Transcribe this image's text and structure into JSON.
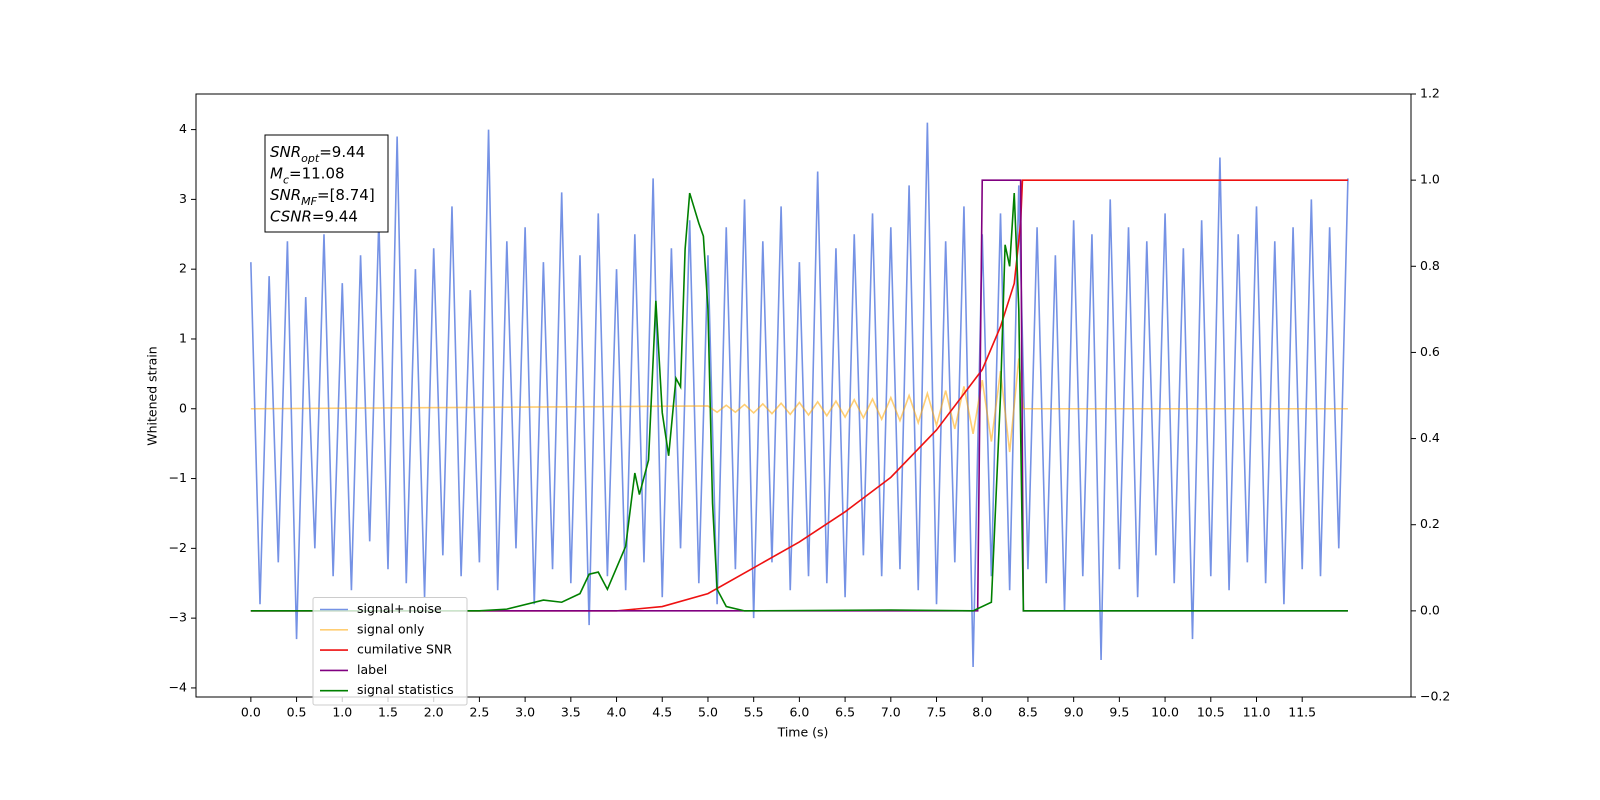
{
  "chart_data": {
    "type": "line",
    "xlabel": "Time (s)",
    "ylabel": "Whitened strain",
    "xlim": [
      -0.6,
      12.69
    ],
    "ylim": [
      -4.13,
      4.51
    ],
    "y2lim": [
      -0.2,
      1.2
    ],
    "xticks": [
      {
        "value": 0,
        "label": "0.0"
      },
      {
        "value": 0.5,
        "label": "0.5"
      },
      {
        "value": 1,
        "label": "1.0"
      },
      {
        "value": 1.5,
        "label": "1.5"
      },
      {
        "value": 2,
        "label": "2.0"
      },
      {
        "value": 2.5,
        "label": "2.5"
      },
      {
        "value": 3,
        "label": "3.0"
      },
      {
        "value": 3.5,
        "label": "3.5"
      },
      {
        "value": 4,
        "label": "4.0"
      },
      {
        "value": 4.5,
        "label": "4.5"
      },
      {
        "value": 5,
        "label": "5.0"
      },
      {
        "value": 5.5,
        "label": "5.5"
      },
      {
        "value": 6,
        "label": "6.0"
      },
      {
        "value": 6.5,
        "label": "6.5"
      },
      {
        "value": 7,
        "label": "7.0"
      },
      {
        "value": 7.5,
        "label": "7.5"
      },
      {
        "value": 8,
        "label": "8.0"
      },
      {
        "value": 8.5,
        "label": "8.5"
      },
      {
        "value": 9,
        "label": "9.0"
      },
      {
        "value": 9.5,
        "label": "9.5"
      },
      {
        "value": 10,
        "label": "10.0"
      },
      {
        "value": 10.5,
        "label": "10.5"
      },
      {
        "value": 11,
        "label": "11.0"
      },
      {
        "value": 11.5,
        "label": "11.5"
      }
    ],
    "yticks": [
      {
        "value": -4,
        "label": "−4"
      },
      {
        "value": -3,
        "label": "−3"
      },
      {
        "value": -2,
        "label": "−2"
      },
      {
        "value": -1,
        "label": "−1"
      },
      0,
      1,
      2,
      3,
      4
    ],
    "y2ticks": [
      {
        "value": -0.2,
        "label": "−0.2"
      },
      {
        "value": 0,
        "label": "0.0"
      },
      {
        "value": 0.2,
        "label": "0.2"
      },
      {
        "value": 0.4,
        "label": "0.4"
      },
      {
        "value": 0.6,
        "label": "0.6"
      },
      {
        "value": 0.8,
        "label": "0.8"
      },
      {
        "value": 1,
        "label": "1.0"
      },
      {
        "value": 1.2,
        "label": "1.2"
      }
    ],
    "legend": "lower left",
    "annotations": [
      {
        "main": "SNR",
        "sub": "opt",
        "text": "=9.44"
      },
      {
        "main": "M",
        "sub": "c",
        "text": "=11.08"
      },
      {
        "main": "SNR",
        "sub": "MF",
        "text": "=[8.74]"
      },
      {
        "main": "CSNR",
        "text": "=9.44"
      }
    ],
    "series": [
      {
        "name": "signal+ noise",
        "color": "#7592e5",
        "x": [
          0,
          0.1,
          0.2,
          0.3,
          0.4,
          0.5,
          0.6,
          0.7,
          0.8,
          0.9,
          1,
          1.1,
          1.2,
          1.3,
          1.4,
          1.5,
          1.6,
          1.7,
          1.8,
          1.9,
          2,
          2.1,
          2.2,
          2.3,
          2.4,
          2.5,
          2.6,
          2.7,
          2.8,
          2.9,
          3,
          3.1,
          3.2,
          3.3,
          3.4,
          3.5,
          3.6,
          3.7,
          3.8,
          3.9,
          4,
          4.1,
          4.2,
          4.3,
          4.4,
          4.5,
          4.6,
          4.7,
          4.8,
          4.9,
          5,
          5.1,
          5.2,
          5.3,
          5.4,
          5.5,
          5.6,
          5.7,
          5.8,
          5.9,
          6,
          6.1,
          6.2,
          6.3,
          6.4,
          6.5,
          6.6,
          6.7,
          6.8,
          6.9,
          7,
          7.1,
          7.2,
          7.3,
          7.4,
          7.5,
          7.6,
          7.7,
          7.8,
          7.9,
          8,
          8.1,
          8.2,
          8.3,
          8.4,
          8.5,
          8.6,
          8.7,
          8.8,
          8.9,
          9,
          9.1,
          9.2,
          9.3,
          9.4,
          9.5,
          9.6,
          9.7,
          9.8,
          9.9,
          10,
          10.1,
          10.2,
          10.3,
          10.4,
          10.5,
          10.6,
          10.7,
          10.8,
          10.9,
          11,
          11.1,
          11.2,
          11.3,
          11.4,
          11.5,
          11.6,
          11.7,
          11.8,
          11.9,
          12
        ],
        "values": [
          2.1,
          -2.8,
          1.9,
          -2.2,
          2.4,
          -3.3,
          1.6,
          -2.0,
          2.5,
          -2.4,
          1.8,
          -2.6,
          2.2,
          -1.9,
          2.7,
          -2.3,
          3.9,
          -2.5,
          2.0,
          -2.7,
          2.3,
          -2.1,
          2.9,
          -2.4,
          1.7,
          -2.2,
          4.0,
          -2.6,
          2.4,
          -2.0,
          2.6,
          -2.8,
          2.1,
          -2.3,
          3.1,
          -2.5,
          2.2,
          -3.1,
          2.8,
          -2.4,
          2.0,
          -2.6,
          2.5,
          -2.2,
          3.3,
          -2.7,
          2.3,
          -2.0,
          2.7,
          -2.5,
          2.2,
          -2.8,
          2.6,
          -2.3,
          3.0,
          -3.0,
          2.4,
          -2.2,
          2.9,
          -2.6,
          2.1,
          -2.4,
          3.4,
          -2.5,
          2.3,
          -2.7,
          2.5,
          -2.1,
          2.8,
          -2.4,
          2.6,
          -2.3,
          3.2,
          -2.6,
          4.1,
          -2.8,
          2.4,
          -2.2,
          2.9,
          -3.7,
          2.5,
          -2.4,
          2.8,
          -2.6,
          3.2,
          -2.3,
          2.6,
          -2.5,
          2.2,
          -2.9,
          2.7,
          -2.4,
          2.5,
          -3.6,
          3.0,
          -2.3,
          2.6,
          -2.7,
          2.4,
          -2.1,
          2.8,
          -2.5,
          2.3,
          -3.3,
          2.7,
          -2.4,
          3.6,
          -2.6,
          2.5,
          -2.2,
          2.9,
          -2.5,
          2.4,
          -2.8,
          2.6,
          -2.3,
          3.0,
          -2.4,
          2.6,
          -2.0,
          3.3
        ]
      },
      {
        "name": "signal only",
        "color": "#ffa500",
        "x": [
          0,
          5,
          5.1,
          5.2,
          5.3,
          5.4,
          5.5,
          5.6,
          5.7,
          5.8,
          5.9,
          6,
          6.1,
          6.2,
          6.3,
          6.4,
          6.5,
          6.6,
          6.7,
          6.8,
          6.9,
          7,
          7.1,
          7.2,
          7.3,
          7.4,
          7.5,
          7.6,
          7.7,
          7.8,
          7.9,
          8,
          8.1,
          8.2,
          8.3,
          8.4,
          8.45,
          12
        ],
        "values": [
          0,
          0.04,
          -0.05,
          0.05,
          -0.05,
          0.06,
          -0.06,
          0.07,
          -0.07,
          0.08,
          -0.08,
          0.09,
          -0.09,
          0.1,
          -0.1,
          0.11,
          -0.12,
          0.13,
          -0.13,
          0.14,
          -0.15,
          0.16,
          -0.17,
          0.19,
          -0.2,
          0.22,
          -0.24,
          0.26,
          -0.29,
          0.32,
          -0.36,
          0.41,
          -0.47,
          0.54,
          -0.62,
          0.72,
          0,
          0
        ]
      },
      {
        "name": "cumilative SNR",
        "color": "#ee1111",
        "axis": "y2",
        "x": [
          0,
          4,
          4.5,
          5,
          5.5,
          6,
          6.5,
          7,
          7.5,
          8,
          8.2,
          8.35,
          8.42,
          8.44,
          12
        ],
        "values": [
          0,
          0,
          0.01,
          0.04,
          0.1,
          0.16,
          0.23,
          0.31,
          0.42,
          0.56,
          0.66,
          0.76,
          0.9,
          1,
          1
        ]
      },
      {
        "name": "label",
        "color": "#800080",
        "axis": "y2",
        "x": [
          0,
          7.95,
          8,
          8.42,
          8.45,
          12
        ],
        "values": [
          0,
          0,
          1,
          1,
          0,
          0
        ]
      },
      {
        "name": "signal statistics",
        "color": "#008000",
        "axis": "y2",
        "x": [
          0,
          2.5,
          2.8,
          3.2,
          3.4,
          3.6,
          3.7,
          3.8,
          3.9,
          4,
          4.1,
          4.2,
          4.25,
          4.35,
          4.43,
          4.5,
          4.57,
          4.65,
          4.7,
          4.75,
          4.8,
          4.9,
          4.95,
          5,
          5.05,
          5.1,
          5.2,
          5.4,
          7,
          7.9,
          8.1,
          8.2,
          8.25,
          8.3,
          8.35,
          8.4,
          8.45,
          12
        ],
        "values": [
          0,
          0,
          0.004,
          0.025,
          0.02,
          0.04,
          0.085,
          0.09,
          0.05,
          0.1,
          0.15,
          0.32,
          0.27,
          0.35,
          0.72,
          0.46,
          0.36,
          0.54,
          0.52,
          0.84,
          0.97,
          0.9,
          0.87,
          0.7,
          0.25,
          0.05,
          0.01,
          0,
          0.002,
          0,
          0.02,
          0.5,
          0.85,
          0.8,
          0.97,
          0.7,
          0,
          0
        ]
      }
    ]
  }
}
